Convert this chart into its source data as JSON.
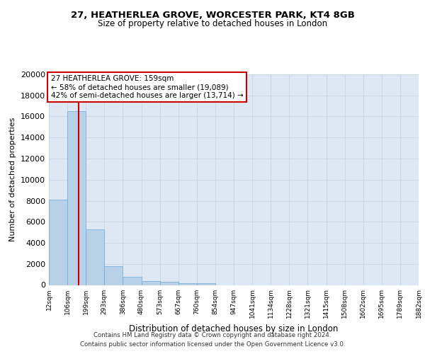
{
  "title1": "27, HEATHERLEA GROVE, WORCESTER PARK, KT4 8GB",
  "title2": "Size of property relative to detached houses in London",
  "xlabel": "Distribution of detached houses by size in London",
  "ylabel": "Number of detached properties",
  "bar_values": [
    8100,
    16500,
    5300,
    1750,
    750,
    350,
    270,
    200,
    175,
    0,
    0,
    0,
    0,
    0,
    0,
    0,
    0,
    0,
    0,
    0
  ],
  "tick_labels": [
    "12sqm",
    "106sqm",
    "199sqm",
    "293sqm",
    "386sqm",
    "480sqm",
    "573sqm",
    "667sqm",
    "760sqm",
    "854sqm",
    "947sqm",
    "1041sqm",
    "1134sqm",
    "1228sqm",
    "1321sqm",
    "1415sqm",
    "1508sqm",
    "1602sqm",
    "1695sqm",
    "1789sqm",
    "1882sqm"
  ],
  "bar_color": "#b8d0e8",
  "bar_edge_color": "#6aaad4",
  "grid_color": "#c8d8e8",
  "bg_color": "#dde8f4",
  "vline_x": 1.6,
  "annotation_text": "27 HEATHERLEA GROVE: 159sqm\n← 58% of detached houses are smaller (19,089)\n42% of semi-detached houses are larger (13,714) →",
  "annotation_box_color": "#ffffff",
  "annotation_border_color": "#cc0000",
  "footnote_line1": "Contains HM Land Registry data © Crown copyright and database right 2024.",
  "footnote_line2": "Contains public sector information licensed under the Open Government Licence v3.0.",
  "ylim": [
    0,
    20000
  ],
  "yticks": [
    0,
    2000,
    4000,
    6000,
    8000,
    10000,
    12000,
    14000,
    16000,
    18000,
    20000
  ]
}
